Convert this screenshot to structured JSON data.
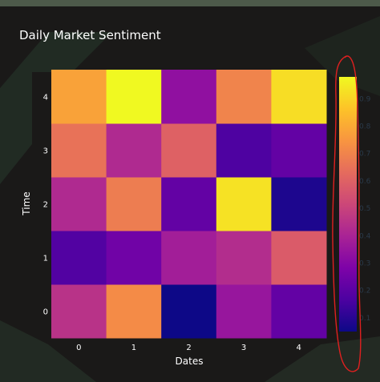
{
  "chart_data": {
    "type": "heatmap",
    "title": "Daily Market Sentiment",
    "xlabel": "Dates",
    "ylabel": "Time",
    "x": [
      0,
      1,
      2,
      3,
      4
    ],
    "y": [
      0,
      1,
      2,
      3,
      4
    ],
    "z": [
      [
        0.45,
        0.72,
        0.05,
        0.35,
        0.22
      ],
      [
        0.18,
        0.25,
        0.38,
        0.43,
        0.58
      ],
      [
        0.42,
        0.68,
        0.22,
        0.93,
        0.08
      ],
      [
        0.65,
        0.42,
        0.6,
        0.17,
        0.22
      ],
      [
        0.78,
        0.98,
        0.33,
        0.7,
        0.92
      ]
    ],
    "colorscale": "plasma",
    "zlim": [
      0.05,
      0.98
    ],
    "colorbar_ticks": [
      0.1,
      0.2,
      0.3,
      0.4,
      0.5,
      0.6,
      0.7,
      0.8,
      0.9
    ],
    "grid": false,
    "annotation_color": "#e02020"
  },
  "colors": {
    "background": "#1a1918",
    "text": "#ffffff",
    "colorbar_tick": "#2a3a4a",
    "top_band": "#5a6a55"
  }
}
